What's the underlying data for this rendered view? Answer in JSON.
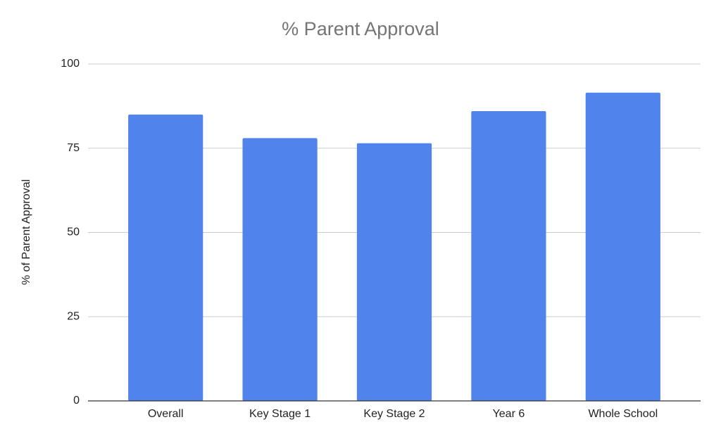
{
  "chart_data": {
    "type": "bar",
    "title": "% Parent Approval",
    "y_label": "% of Parent Approval",
    "categories": [
      "Overall",
      "Key Stage 1",
      "Key Stage 2",
      "Year 6",
      "Whole School"
    ],
    "values": [
      85,
      78,
      76.5,
      86,
      91.5
    ],
    "color": "#5083ec",
    "ylim": [
      0,
      100
    ],
    "yticks": [
      0,
      25,
      50,
      75,
      100
    ],
    "grid": true
  }
}
